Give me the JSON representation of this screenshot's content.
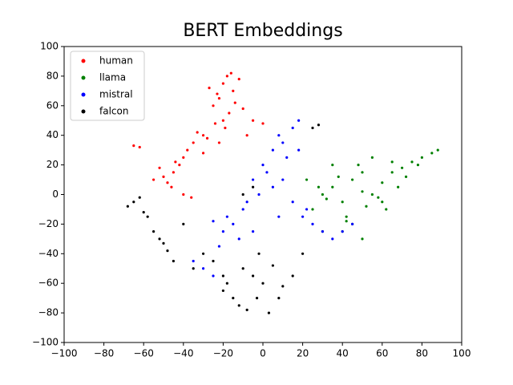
{
  "chart_data": {
    "type": "scatter",
    "title": "BERT Embeddings",
    "xlim": [
      -100,
      100
    ],
    "ylim": [
      -100,
      100
    ],
    "xticks": [
      {
        "value": -100,
        "label": "−100"
      },
      {
        "value": -80,
        "label": "−80"
      },
      {
        "value": -60,
        "label": "−60"
      },
      {
        "value": -40,
        "label": "−40"
      },
      {
        "value": -20,
        "label": "−20"
      },
      0,
      20,
      40,
      60,
      80,
      100
    ],
    "yticks": [
      {
        "value": -100,
        "label": "−100"
      },
      {
        "value": -80,
        "label": "−80"
      },
      {
        "value": -60,
        "label": "−60"
      },
      {
        "value": -40,
        "label": "−40"
      },
      {
        "value": -20,
        "label": "−20"
      },
      0,
      20,
      40,
      60,
      80,
      100
    ],
    "legend": "upper left",
    "series": [
      {
        "name": "human",
        "color": "#ff0000",
        "x": [
          -20,
          -18,
          -15,
          -22,
          -25,
          -12,
          -17,
          -27,
          -20,
          -14,
          -23,
          -19,
          -10,
          -16,
          -24,
          -30,
          -35,
          -38,
          -40,
          -33,
          -28,
          -42,
          -45,
          -50,
          -48,
          -52,
          -46,
          -44,
          -55,
          -62,
          -65,
          -40,
          -5,
          0,
          -8,
          -36,
          -30,
          -22
        ],
        "values": [
          75,
          80,
          70,
          65,
          60,
          78,
          55,
          72,
          50,
          62,
          68,
          45,
          58,
          82,
          48,
          40,
          35,
          30,
          25,
          42,
          38,
          20,
          15,
          12,
          8,
          18,
          5,
          22,
          10,
          32,
          33,
          0,
          50,
          48,
          40,
          -2,
          28,
          35
        ]
      },
      {
        "name": "llama",
        "color": "#008000",
        "x": [
          30,
          35,
          40,
          45,
          50,
          55,
          60,
          65,
          70,
          75,
          80,
          85,
          88,
          25,
          28,
          32,
          38,
          42,
          48,
          52,
          58,
          62,
          68,
          72,
          45,
          50,
          55,
          35,
          40,
          60,
          65,
          78,
          22,
          30,
          50,
          42
        ],
        "values": [
          0,
          5,
          -5,
          10,
          2,
          0,
          8,
          15,
          18,
          22,
          25,
          28,
          30,
          -10,
          5,
          -3,
          12,
          -15,
          20,
          -8,
          -2,
          -10,
          5,
          12,
          -20,
          15,
          25,
          20,
          -25,
          -5,
          22,
          20,
          10,
          -25,
          -30,
          -18
        ]
      },
      {
        "name": "mistral",
        "color": "#0000ff",
        "x": [
          10,
          15,
          5,
          12,
          8,
          18,
          0,
          -5,
          -10,
          -15,
          -20,
          -18,
          -12,
          -8,
          -25,
          -22,
          -5,
          5,
          2,
          10,
          20,
          25,
          22,
          30,
          35,
          40,
          45,
          -30,
          -35,
          -25,
          15,
          8,
          -2,
          18
        ],
        "values": [
          35,
          45,
          30,
          25,
          40,
          50,
          20,
          10,
          -10,
          -20,
          -25,
          -15,
          -30,
          -5,
          -18,
          -35,
          -25,
          5,
          15,
          10,
          -15,
          -20,
          -10,
          -25,
          -30,
          -25,
          -20,
          -50,
          -45,
          -55,
          -5,
          -15,
          0,
          30
        ]
      },
      {
        "name": "falcon",
        "color": "#000000",
        "x": [
          -65,
          -68,
          -62,
          -60,
          -50,
          -52,
          -48,
          -55,
          -45,
          -5,
          -10,
          0,
          5,
          -15,
          -20,
          -12,
          -8,
          10,
          -25,
          -30,
          -35,
          -20,
          -3,
          3,
          15,
          20,
          -40,
          -10,
          -5,
          28,
          25,
          -18,
          -2,
          8,
          -58
        ],
        "values": [
          -5,
          -8,
          -2,
          -12,
          -33,
          -30,
          -38,
          -25,
          -45,
          -55,
          -50,
          -60,
          -48,
          -70,
          -65,
          -75,
          -78,
          -62,
          -45,
          -40,
          -50,
          -55,
          -70,
          -80,
          -55,
          -40,
          -20,
          0,
          5,
          47,
          45,
          -60,
          -40,
          -70,
          -15
        ]
      }
    ]
  }
}
